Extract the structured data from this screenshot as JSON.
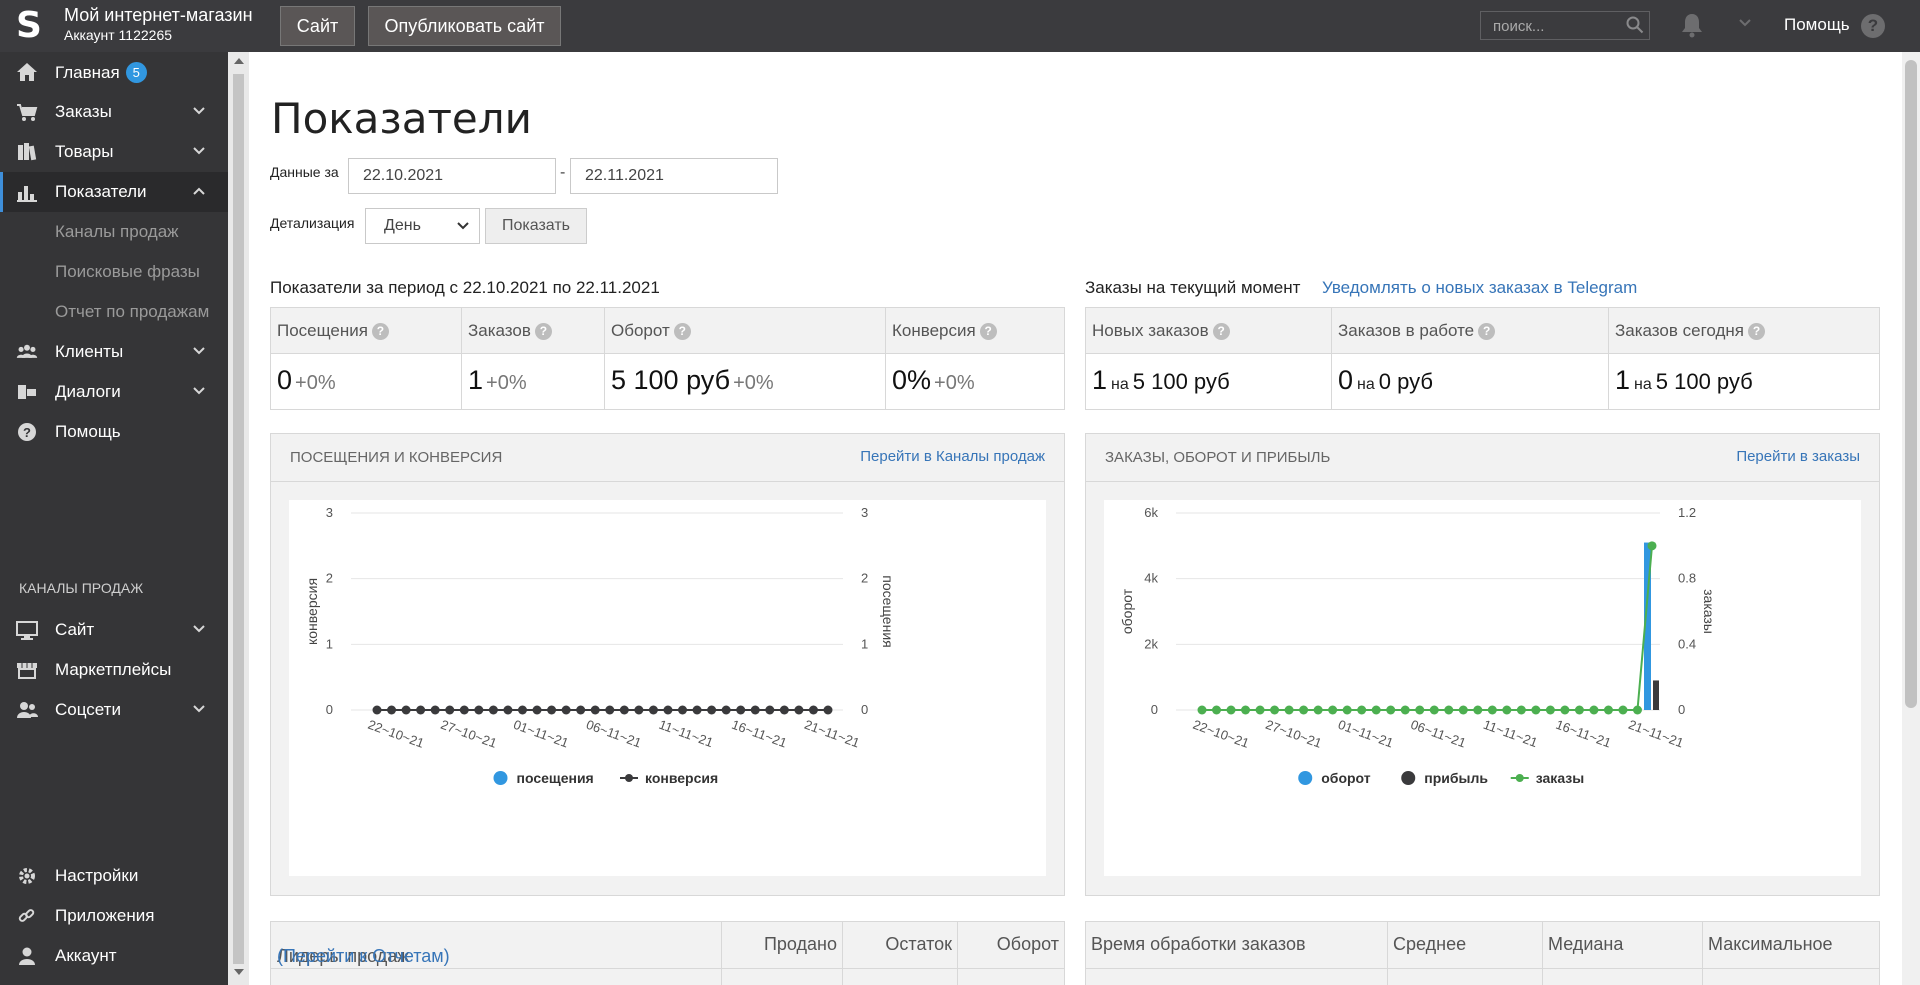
{
  "header": {
    "logo_letter": "S",
    "shop_name": "Мой интернет-магазин",
    "account_id": "Аккаунт 1122265",
    "site_button": "Сайт",
    "publish_button": "Опубликовать сайт",
    "search_placeholder": "поиск...",
    "help_label": "Помощь"
  },
  "sidebar": {
    "items": [
      {
        "label": "Главная",
        "badge": "5",
        "icon": "home-icon"
      },
      {
        "label": "Заказы",
        "icon": "cart-icon"
      },
      {
        "label": "Товары",
        "icon": "books-icon"
      },
      {
        "label": "Показатели",
        "icon": "bar-chart-icon",
        "active": true
      },
      {
        "label": "Клиенты",
        "icon": "users-icon"
      },
      {
        "label": "Диалоги",
        "icon": "chat-icon"
      },
      {
        "label": "Помощь",
        "icon": "help-icon"
      }
    ],
    "sub_items": [
      "Каналы продаж",
      "Поисковые фразы",
      "Отчет по продажам"
    ],
    "channels_header": "КАНАЛЫ ПРОДАЖ",
    "channels": [
      {
        "label": "Сайт",
        "icon": "monitor-icon"
      },
      {
        "label": "Маркетплейсы",
        "icon": "store-icon"
      },
      {
        "label": "Соцсети",
        "icon": "people-icon"
      }
    ],
    "bottom": [
      {
        "label": "Настройки",
        "icon": "gear-icon"
      },
      {
        "label": "Приложения",
        "icon": "link-icon"
      },
      {
        "label": "Аккаунт",
        "icon": "user-icon"
      }
    ]
  },
  "page": {
    "title": "Показатели",
    "data_for_label": "Данные за",
    "date_from": "22.10.2021",
    "date_separator": "-",
    "date_to": "22.11.2021",
    "detail_label": "Детализация",
    "detail_value": "День",
    "show_button": "Показать"
  },
  "period_stats": {
    "title": "Показатели за период с 22.10.2021 по 22.11.2021",
    "columns": [
      {
        "label": "Посещения",
        "value": "0",
        "change": "+0%"
      },
      {
        "label": "Заказов",
        "value": "1",
        "change": "+0%"
      },
      {
        "label": "Оборот",
        "value": "5 100 руб",
        "change": "+0%"
      },
      {
        "label": "Конверсия",
        "value": "0%",
        "change": "+0%"
      }
    ]
  },
  "current_orders": {
    "title": "Заказы на текущий момент",
    "telegram_link": "Уведомлять о новых заказах в Telegram",
    "columns": [
      {
        "label": "Новых заказов",
        "value": "1",
        "na": "на",
        "amount": "5 100 руб"
      },
      {
        "label": "Заказов в работе",
        "value": "0",
        "na": "на",
        "amount": "0 руб"
      },
      {
        "label": "Заказов сегодня",
        "value": "1",
        "na": "на",
        "amount": "5 100 руб"
      }
    ]
  },
  "panels": {
    "visits": {
      "title": "ПОСЕЩЕНИЯ И КОНВЕРСИЯ",
      "link": "Перейти в Каналы продаж"
    },
    "orders": {
      "title": "ЗАКАЗЫ, ОБОРОТ И ПРИБЫЛЬ",
      "link": "Перейти в заказы"
    }
  },
  "chart_data": [
    {
      "type": "line",
      "x": [
        "22-10-21",
        "23-10-21",
        "24-10-21",
        "25-10-21",
        "26-10-21",
        "27-10-21",
        "28-10-21",
        "29-10-21",
        "30-10-21",
        "31-10-21",
        "01-11-21",
        "02-11-21",
        "03-11-21",
        "04-11-21",
        "05-11-21",
        "06-11-21",
        "07-11-21",
        "08-11-21",
        "09-11-21",
        "10-11-21",
        "11-11-21",
        "12-11-21",
        "13-11-21",
        "14-11-21",
        "15-11-21",
        "16-11-21",
        "17-11-21",
        "18-11-21",
        "19-11-21",
        "20-11-21",
        "21-11-21",
        "22-11-21"
      ],
      "x_tick_labels": [
        "22-10-21",
        "27-10-21",
        "01-11-21",
        "06-11-21",
        "11-11-21",
        "16-11-21",
        "21-11-21"
      ],
      "y_left_label": "конверсия",
      "y_right_label": "посещения",
      "y_left_ticks": [
        "0",
        "1",
        "2",
        "3"
      ],
      "y_right_ticks": [
        "0",
        "1",
        "2",
        "3"
      ],
      "ylim": [
        0,
        3
      ],
      "legend_position": "bottom-center",
      "series": [
        {
          "name": "посещения",
          "color": "#3197e0",
          "values": [
            0,
            0,
            0,
            0,
            0,
            0,
            0,
            0,
            0,
            0,
            0,
            0,
            0,
            0,
            0,
            0,
            0,
            0,
            0,
            0,
            0,
            0,
            0,
            0,
            0,
            0,
            0,
            0,
            0,
            0,
            0,
            0
          ]
        },
        {
          "name": "конверсия",
          "color": "#3a3a3c",
          "values": [
            0,
            0,
            0,
            0,
            0,
            0,
            0,
            0,
            0,
            0,
            0,
            0,
            0,
            0,
            0,
            0,
            0,
            0,
            0,
            0,
            0,
            0,
            0,
            0,
            0,
            0,
            0,
            0,
            0,
            0,
            0,
            0
          ]
        }
      ]
    },
    {
      "type": "bar",
      "x": [
        "22-10-21",
        "23-10-21",
        "24-10-21",
        "25-10-21",
        "26-10-21",
        "27-10-21",
        "28-10-21",
        "29-10-21",
        "30-10-21",
        "31-10-21",
        "01-11-21",
        "02-11-21",
        "03-11-21",
        "04-11-21",
        "05-11-21",
        "06-11-21",
        "07-11-21",
        "08-11-21",
        "09-11-21",
        "10-11-21",
        "11-11-21",
        "12-11-21",
        "13-11-21",
        "14-11-21",
        "15-11-21",
        "16-11-21",
        "17-11-21",
        "18-11-21",
        "19-11-21",
        "20-11-21",
        "21-11-21",
        "22-11-21"
      ],
      "x_tick_labels": [
        "22-10-21",
        "27-10-21",
        "01-11-21",
        "06-11-21",
        "11-11-21",
        "16-11-21",
        "21-11-21"
      ],
      "y_left_label": "оборот",
      "y_right_label": "заказы",
      "y_left_ticks": [
        "0",
        "2k",
        "4k",
        "6k"
      ],
      "y_right_ticks": [
        "0",
        "0.4",
        "0.8",
        "1.2"
      ],
      "ylim_left": [
        0,
        6000
      ],
      "ylim_right": [
        0,
        1.2
      ],
      "legend_position": "bottom-center",
      "series": [
        {
          "name": "оборот",
          "color": "#3197e0",
          "kind": "bar",
          "values": [
            0,
            0,
            0,
            0,
            0,
            0,
            0,
            0,
            0,
            0,
            0,
            0,
            0,
            0,
            0,
            0,
            0,
            0,
            0,
            0,
            0,
            0,
            0,
            0,
            0,
            0,
            0,
            0,
            0,
            0,
            0,
            5100
          ]
        },
        {
          "name": "прибыль",
          "color": "#3a3a3c",
          "kind": "bar",
          "values": [
            0,
            0,
            0,
            0,
            0,
            0,
            0,
            0,
            0,
            0,
            0,
            0,
            0,
            0,
            0,
            0,
            0,
            0,
            0,
            0,
            0,
            0,
            0,
            0,
            0,
            0,
            0,
            0,
            0,
            0,
            0,
            900
          ]
        },
        {
          "name": "заказы",
          "color": "#4caf50",
          "kind": "line",
          "axis": "right",
          "values": [
            0,
            0,
            0,
            0,
            0,
            0,
            0,
            0,
            0,
            0,
            0,
            0,
            0,
            0,
            0,
            0,
            0,
            0,
            0,
            0,
            0,
            0,
            0,
            0,
            0,
            0,
            0,
            0,
            0,
            0,
            0,
            1
          ]
        }
      ]
    }
  ],
  "leaders_table": {
    "title": "Лидеры продаж",
    "link": "(Перейти к Отчетам)",
    "columns": [
      "Продано",
      "Остаток",
      "Оборот"
    ]
  },
  "processing_table": {
    "columns": [
      "Время обработки заказов",
      "Среднее",
      "Медиана",
      "Максимальное"
    ]
  }
}
